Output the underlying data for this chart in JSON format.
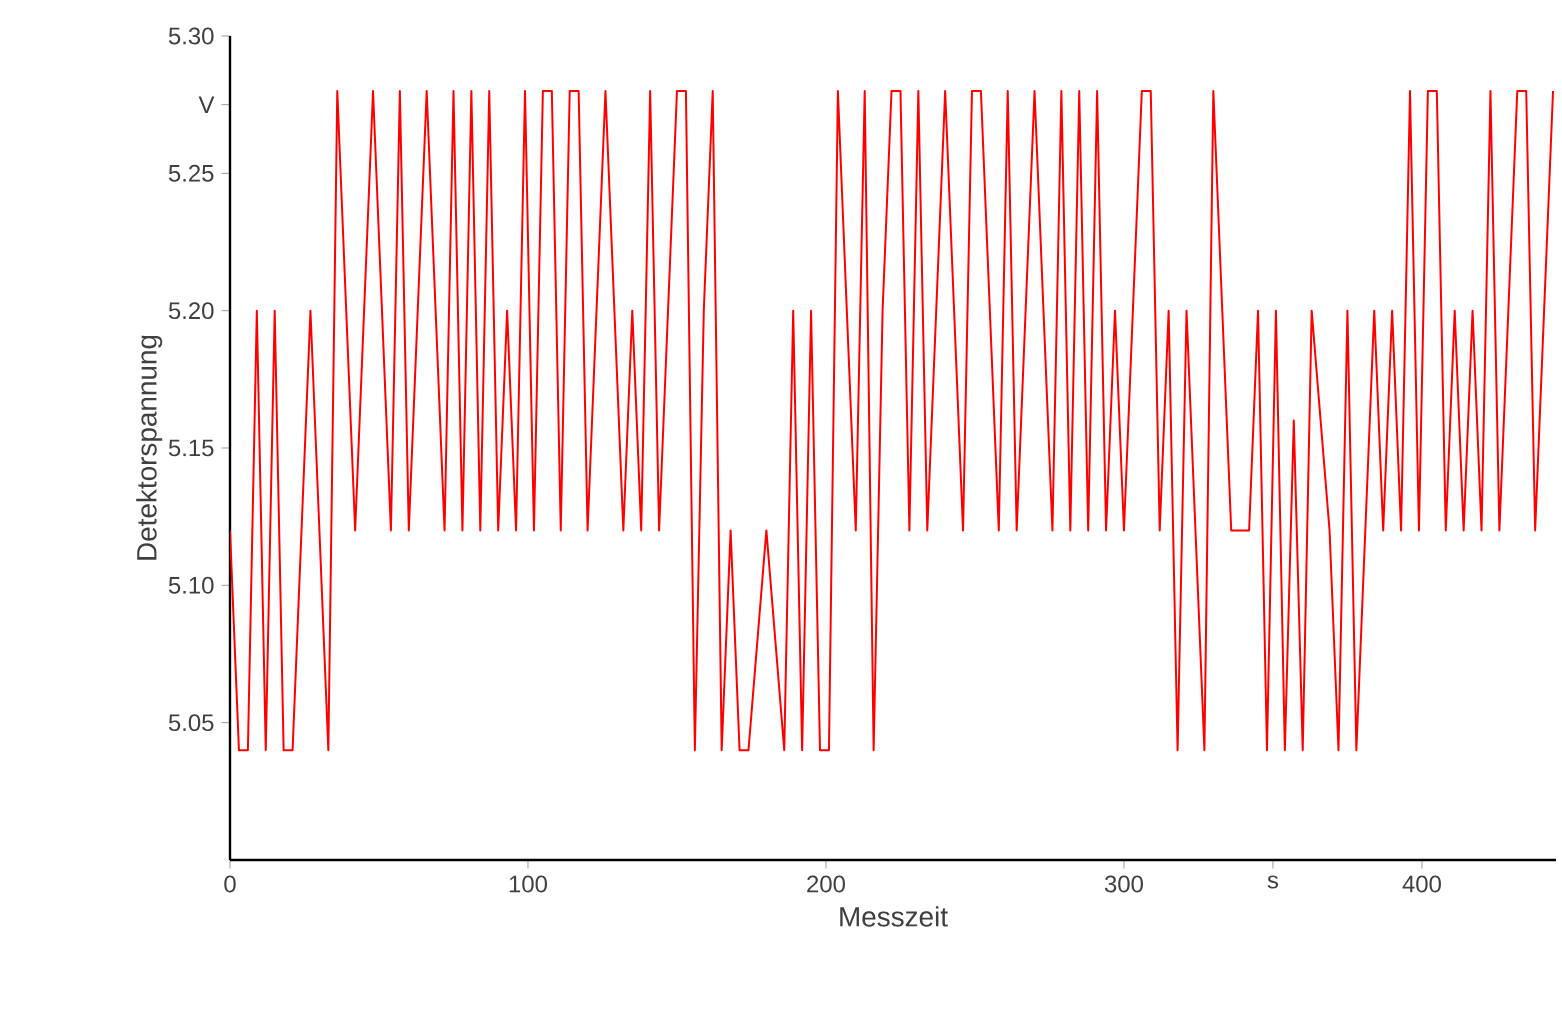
{
  "chart_data": {
    "type": "line",
    "xlabel": "Messzeit",
    "ylabel": "Detektorspannung",
    "xlim": [
      0,
      445
    ],
    "ylim": [
      5.0,
      5.3
    ],
    "xticks": [
      0,
      100,
      200,
      300,
      {
        "value": 350,
        "label": "s"
      },
      400
    ],
    "yticks": [
      5.05,
      {
        "value": 5.1,
        "label": "5.10"
      },
      5.15,
      {
        "value": 5.2,
        "label": "5.20"
      },
      5.25,
      {
        "value": 5.275,
        "label": "V"
      },
      {
        "value": 5.3,
        "label": "5.30"
      }
    ],
    "grid": false,
    "marker": "none",
    "line_style": "solid",
    "x": [
      0,
      3,
      6,
      9,
      12,
      15,
      18,
      21,
      24,
      27,
      30,
      33,
      36,
      39,
      42,
      45,
      48,
      51,
      54,
      57,
      60,
      63,
      66,
      69,
      72,
      75,
      78,
      81,
      84,
      87,
      90,
      93,
      96,
      99,
      102,
      105,
      108,
      111,
      114,
      117,
      120,
      123,
      126,
      129,
      132,
      135,
      138,
      141,
      144,
      147,
      150,
      153,
      156,
      159,
      162,
      165,
      168,
      171,
      174,
      177,
      180,
      183,
      186,
      189,
      192,
      195,
      198,
      201,
      204,
      207,
      210,
      213,
      216,
      219,
      222,
      225,
      228,
      231,
      234,
      237,
      240,
      243,
      246,
      249,
      252,
      255,
      258,
      261,
      264,
      267,
      270,
      273,
      276,
      279,
      282,
      285,
      288,
      291,
      294,
      297,
      300,
      303,
      306,
      309,
      312,
      315,
      318,
      321,
      324,
      327,
      330,
      333,
      336,
      339,
      342,
      345,
      348,
      351,
      354,
      357,
      360,
      363,
      366,
      369,
      372,
      375,
      378,
      381,
      384,
      387,
      390,
      393,
      396,
      399,
      402,
      405,
      408,
      411,
      414,
      417,
      420,
      423,
      426,
      429,
      432,
      435,
      438,
      441,
      444
    ],
    "series": [
      {
        "color": "#ff0000",
        "values": [
          5.12,
          5.04,
          5.04,
          5.2,
          5.04,
          5.2,
          5.04,
          5.04,
          5.12,
          5.2,
          5.12,
          5.04,
          5.28,
          5.2,
          5.12,
          5.2,
          5.28,
          5.2,
          5.12,
          5.28,
          5.12,
          5.2,
          5.28,
          5.2,
          5.12,
          5.28,
          5.12,
          5.28,
          5.12,
          5.28,
          5.12,
          5.2,
          5.12,
          5.28,
          5.12,
          5.28,
          5.28,
          5.12,
          5.28,
          5.28,
          5.12,
          5.2,
          5.28,
          5.2,
          5.12,
          5.2,
          5.12,
          5.28,
          5.12,
          5.2,
          5.28,
          5.28,
          5.04,
          5.2,
          5.28,
          5.04,
          5.12,
          5.04,
          5.04,
          null,
          5.12,
          null,
          5.04,
          5.2,
          5.04,
          5.2,
          5.04,
          5.04,
          5.28,
          5.2,
          5.12,
          5.28,
          5.04,
          5.2,
          5.28,
          5.28,
          5.12,
          5.28,
          5.12,
          5.2,
          5.28,
          5.2,
          5.12,
          5.28,
          5.28,
          5.2,
          5.12,
          5.28,
          5.12,
          5.2,
          5.28,
          5.2,
          5.12,
          5.28,
          5.12,
          5.28,
          5.12,
          5.28,
          5.12,
          5.2,
          5.12,
          5.2,
          5.28,
          5.28,
          5.12,
          5.2,
          5.04,
          5.2,
          5.12,
          5.04,
          5.28,
          5.2,
          5.12,
          null,
          5.12,
          5.2,
          5.04,
          5.2,
          5.04,
          5.16,
          5.04,
          5.2,
          null,
          5.12,
          5.04,
          5.2,
          5.04,
          5.12,
          5.2,
          5.12,
          5.2,
          5.12,
          5.28,
          5.12,
          5.28,
          5.28,
          5.12,
          5.2,
          5.12,
          5.2,
          5.12,
          5.28,
          5.12,
          5.2,
          5.28,
          5.28,
          5.12,
          5.2,
          5.28
        ]
      }
    ]
  }
}
